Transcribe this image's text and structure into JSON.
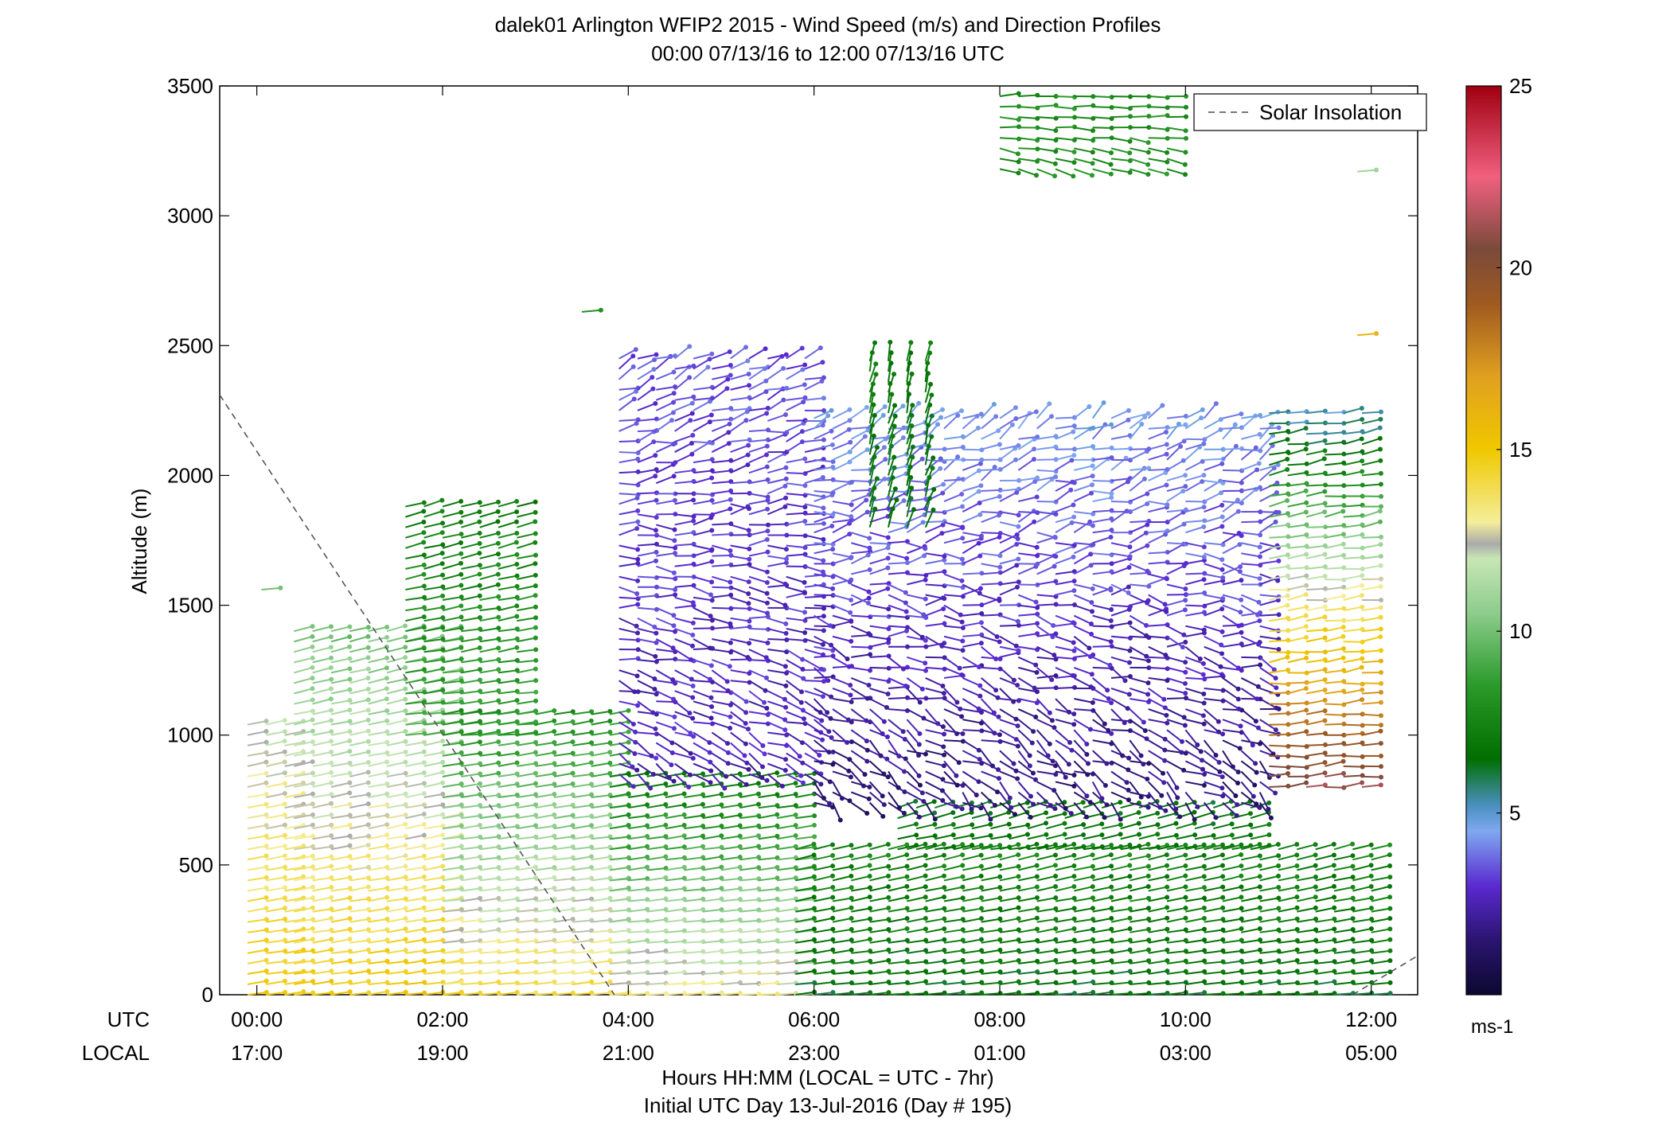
{
  "chart_data": {
    "type": "scatter",
    "title_line1": "dalek01 Arlington WFIP2 2015 - Wind Speed (m/s) and Direction Profiles",
    "title_line2": "00:00 07/13/16 to 12:00 07/13/16  UTC",
    "ylabel": "Altitude (m)",
    "xlabel_line1": "Hours HH:MM  (LOCAL = UTC - 7hr)",
    "xlabel_line2": "Initial UTC Day 13-Jul-2016 (Day # 195)",
    "row_label_utc": "UTC",
    "row_label_local": "LOCAL",
    "xlim_hours": [
      -0.4,
      12.5
    ],
    "ylim": [
      0,
      3500
    ],
    "y_ticks": [
      0,
      500,
      1000,
      1500,
      2000,
      2500,
      3000,
      3500
    ],
    "x_ticks": [
      {
        "hour": 0,
        "utc": "00:00",
        "local": "17:00"
      },
      {
        "hour": 2,
        "utc": "02:00",
        "local": "19:00"
      },
      {
        "hour": 4,
        "utc": "04:00",
        "local": "21:00"
      },
      {
        "hour": 6,
        "utc": "06:00",
        "local": "23:00"
      },
      {
        "hour": 8,
        "utc": "08:00",
        "local": "01:00"
      },
      {
        "hour": 10,
        "utc": "10:00",
        "local": "03:00"
      },
      {
        "hour": 12,
        "utc": "12:00",
        "local": "05:00"
      }
    ],
    "legend": {
      "entry": "Solar Insolation",
      "placement": "top-right",
      "style": "dashed-gray"
    },
    "solar_insolation_line": [
      [
        -0.4,
        2310
      ],
      [
        3.85,
        0
      ]
    ],
    "solar_insolation_line_end": [
      [
        11.8,
        0
      ],
      [
        12.5,
        150
      ]
    ],
    "colorbar": {
      "label": "ms-1",
      "range": [
        0,
        25
      ],
      "ticks": [
        5,
        10,
        15,
        20,
        25
      ],
      "stops": [
        {
          "v": 0,
          "c": "#0b0830"
        },
        {
          "v": 1.5,
          "c": "#2b1470"
        },
        {
          "v": 3,
          "c": "#5a2ad0"
        },
        {
          "v": 4.5,
          "c": "#7fa8f0"
        },
        {
          "v": 5.2,
          "c": "#4a90c0"
        },
        {
          "v": 6.5,
          "c": "#006e00"
        },
        {
          "v": 8.5,
          "c": "#2a9a2a"
        },
        {
          "v": 10.5,
          "c": "#8dcc8d"
        },
        {
          "v": 12,
          "c": "#c8e6b4"
        },
        {
          "v": 12.4,
          "c": "#aaaaaa"
        },
        {
          "v": 13,
          "c": "#f4ee9a"
        },
        {
          "v": 15,
          "c": "#f0c800"
        },
        {
          "v": 17,
          "c": "#e0a020"
        },
        {
          "v": 19,
          "c": "#a05a20"
        },
        {
          "v": 20.5,
          "c": "#7a4a3a"
        },
        {
          "v": 22.5,
          "c": "#f06080"
        },
        {
          "v": 25,
          "c": "#a00010"
        }
      ]
    },
    "barb_time_step_hours": 0.2,
    "wind_profiles": [
      {
        "t0": -0.1,
        "t1": 0.4,
        "zmax": 1050,
        "zmin": 0,
        "speed_low": 15,
        "speed_high": 12,
        "dir_low": 8,
        "dir_high": 12,
        "noise": 4
      },
      {
        "t0": 0.4,
        "t1": 2.0,
        "zmax": 1400,
        "zmin": 0,
        "speed_low": 15,
        "speed_high": 10,
        "dir_low": 8,
        "dir_high": 14,
        "noise": 5
      },
      {
        "t0": 1.6,
        "t1": 2.8,
        "zmax": 1900,
        "zmin": 1000,
        "speed_low": 9,
        "speed_high": 7,
        "dir_low": 6,
        "dir_high": 16,
        "noise": 8
      },
      {
        "t0": 2.0,
        "t1": 3.8,
        "zmax": 1100,
        "zmin": 0,
        "speed_low": 14,
        "speed_high": 8,
        "dir_low": 6,
        "dir_high": 10,
        "noise": 4
      },
      {
        "t0": 3.8,
        "t1": 5.8,
        "zmax": 850,
        "zmin": 0,
        "speed_low": 13,
        "speed_high": 7,
        "dir_low": 4,
        "dir_high": 10,
        "noise": 4
      },
      {
        "t0": 5.8,
        "t1": 12.0,
        "zmax": 560,
        "zmin": 0,
        "speed_low": 6.5,
        "speed_high": 7.5,
        "dir_low": 6,
        "dir_high": 14,
        "noise": 4
      },
      {
        "t0": 6.9,
        "t1": 10.8,
        "zmax": 740,
        "zmin": 560,
        "speed_low": 7,
        "speed_high": 6.5,
        "dir_low": 10,
        "dir_high": 18,
        "noise": 6
      },
      {
        "t0": 3.9,
        "t1": 6.0,
        "zmax": 2450,
        "zmin": 850,
        "speed_low": 2.5,
        "speed_high": 3.5,
        "dir_low": -30,
        "dir_high": 25,
        "noise": 40
      },
      {
        "t0": 6.0,
        "t1": 10.8,
        "zmax": 2250,
        "zmin": 740,
        "speed_low": 1.5,
        "speed_high": 4.5,
        "dir_low": -40,
        "dir_high": 30,
        "noise": 55
      },
      {
        "t0": 6.6,
        "t1": 7.2,
        "zmax": 2450,
        "zmin": 1800,
        "speed_low": 6.5,
        "speed_high": 7,
        "dir_low": 70,
        "dir_high": 80,
        "noise": 15
      },
      {
        "t0": 10.9,
        "t1": 11.9,
        "zmax": 2250,
        "zmin": 800,
        "speed_low": 21,
        "speed_high": 5,
        "dir_low": 5,
        "dir_high": 10,
        "noise": 20
      },
      {
        "t0": 8.0,
        "t1": 9.8,
        "zmax": 3480,
        "zmin": 3180,
        "speed_low": 8,
        "speed_high": 8,
        "dir_low": -15,
        "dir_high": 5,
        "noise": 15
      }
    ],
    "highest_barbs": [
      {
        "hour": 11.85,
        "alt": 3170,
        "speed": 11
      },
      {
        "hour": 11.85,
        "alt": 2540,
        "speed": 16
      },
      {
        "hour": 0.05,
        "alt": 1560,
        "speed": 10
      },
      {
        "hour": 3.5,
        "alt": 2630,
        "speed": 8
      }
    ]
  }
}
